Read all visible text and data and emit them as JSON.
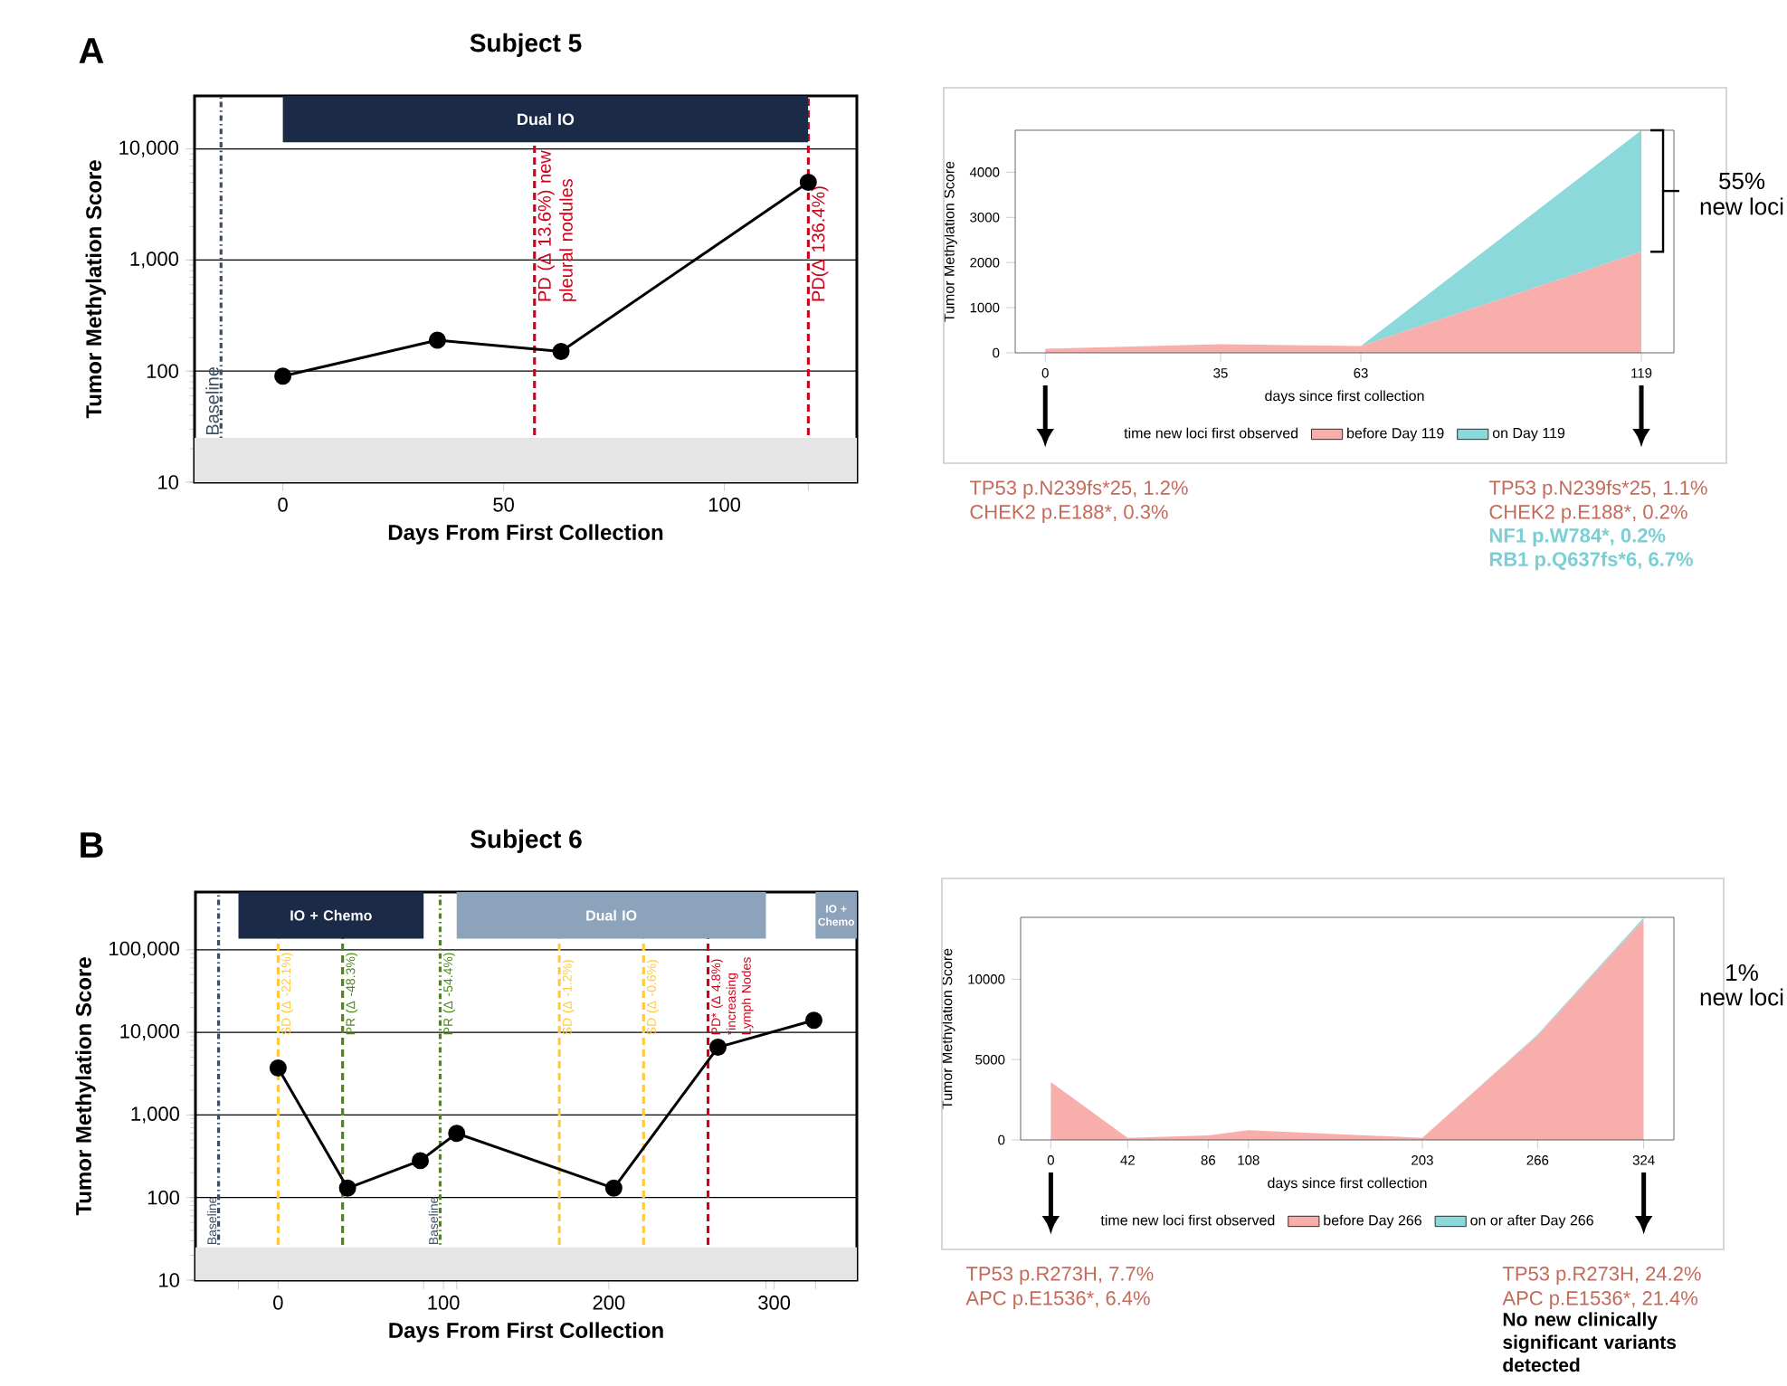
{
  "chart_data": [
    {
      "type": "line",
      "title": "Subject 5",
      "xlabel": "Days From First Collection",
      "ylabel": "Tumor Methylation Score",
      "x": [
        0,
        35,
        63,
        119
      ],
      "values": [
        90,
        190,
        150,
        5000
      ],
      "color": "#000000",
      "marker": "circle",
      "line_style": "solid",
      "log": "y",
      "grid": "y",
      "xlim": [
        -20,
        130
      ],
      "ylim": [
        10,
        30000
      ],
      "xticks": [
        0,
        50,
        100,
        {
          "value": 119,
          "label": null
        }
      ],
      "yticks": [
        10,
        100,
        {
          "value": 1000,
          "label": "1,000"
        },
        {
          "value": 10000,
          "label": "10,000"
        }
      ],
      "ref_lines": [
        {
          "axis": "x",
          "value": -14,
          "label": "Baseline",
          "color": "#3d4f63",
          "line_style": "dotted"
        },
        {
          "axis": "x",
          "value": 57,
          "label": "PD (Δ 13.6%) new pleural nodules",
          "color": "#d0021b",
          "line_style": "dashed"
        },
        {
          "axis": "x",
          "value": 119,
          "label": "PD(Δ 136.4%)",
          "color": "#d0021b",
          "line_style": "dashed"
        }
      ],
      "bands": [
        {
          "axis": "x",
          "from": 0,
          "to": 119,
          "label": "Dual IO",
          "color": "#1b2a47"
        },
        {
          "axis": "y",
          "from": 10,
          "to": 25,
          "color": "#e5e5e5"
        }
      ],
      "annotations": [
        "A"
      ]
    },
    {
      "type": "area",
      "stacked": true,
      "xlabel": "days since first collection",
      "ylabel": "Tumor Methylation Score",
      "x": [
        0,
        35,
        63,
        119
      ],
      "series": [
        {
          "name": "before Day 119",
          "color": "#f8aeab",
          "values": [
            90,
            190,
            150,
            2240
          ]
        },
        {
          "name": "on Day 119",
          "color": "#8cd9db",
          "values": [
            0,
            0,
            0,
            2690
          ]
        }
      ],
      "xlim": [
        -6,
        125.5
      ],
      "ylim": [
        0,
        4930
      ],
      "xticks": [
        0,
        35,
        63,
        119
      ],
      "yticks": [
        0,
        1000,
        2000,
        3000,
        4000
      ],
      "legend": "bottom",
      "legend_title": "time new loci first observed",
      "annotations": [
        "55%",
        "new loci",
        "TP53 p.N239fs*25, 1.2%",
        "CHEK2 p.E188*, 0.3%",
        "TP53 p.N239fs*25, 1.1%",
        "CHEK2 p.E188*, 0.2%",
        "NF1 p.W784*, 0.2%",
        "RB1 p.Q637fs*6, 6.7%"
      ]
    },
    {
      "type": "line",
      "title": "Subject 6",
      "xlabel": "Days From First Collection",
      "ylabel": "Tumor Methylation Score",
      "x": [
        0,
        42,
        86,
        108,
        203,
        266,
        324
      ],
      "values": [
        3700,
        130,
        280,
        600,
        130,
        6600,
        14000
      ],
      "color": "#000000",
      "marker": "circle",
      "line_style": "solid",
      "log": "y",
      "grid": "y",
      "xlim": [
        -50,
        350
      ],
      "ylim": [
        10,
        500000
      ],
      "xticks": [
        {
          "value": -24,
          "label": null
        },
        0,
        {
          "value": 88,
          "label": null
        },
        100,
        {
          "value": 108,
          "label": null
        },
        200,
        {
          "value": 295,
          "label": null
        },
        300,
        {
          "value": 325,
          "label": null
        }
      ],
      "yticks": [
        10,
        100,
        {
          "value": 1000,
          "label": "1,000"
        },
        {
          "value": 10000,
          "label": "10,000"
        },
        {
          "value": 100000,
          "label": "100,000"
        }
      ],
      "ref_lines": [
        {
          "axis": "x",
          "value": -36,
          "label": "Baseline",
          "color": "#3d4f63",
          "line_style": "dotted"
        },
        {
          "axis": "x",
          "value": 0,
          "label": "SD (Δ -22.1%)",
          "color": "#ffc83d",
          "line_style": "dashed"
        },
        {
          "axis": "x",
          "value": 39,
          "label": "PR (Δ -48.3%)",
          "color": "#4a8a12",
          "line_style": "dashed"
        },
        {
          "axis": "x",
          "value": 98,
          "label": "PR (Δ -54.4%)",
          "color": "#4a8a12",
          "line_style": "dotted"
        },
        {
          "axis": "x",
          "value": 170,
          "label": "SD (Δ -1.2%)",
          "color": "#ffc83d",
          "line_style": "dashed"
        },
        {
          "axis": "x",
          "value": 221,
          "label": "SD (Δ -0.6%)",
          "color": "#ffc83d",
          "line_style": "dashed"
        },
        {
          "axis": "x",
          "value": 260,
          "label": "PD* (Δ 4.8%) *increasing Lymph Nodes",
          "color": "#d0021b",
          "line_style": "dashed"
        }
      ],
      "bands": [
        {
          "axis": "x",
          "from": -24,
          "to": 88,
          "label": "IO + Chemo",
          "color": "#1b2a47"
        },
        {
          "axis": "x",
          "from": 108,
          "to": 295,
          "label": "Dual IO",
          "color": "#8da2bb"
        },
        {
          "axis": "x",
          "from": 325,
          "to": 350,
          "label": "IO + Chemo",
          "color": "#8da2bb"
        },
        {
          "axis": "y",
          "from": 10,
          "to": 25,
          "color": "#e5e5e5"
        }
      ],
      "annotations": [
        "B",
        {
          "text": "Baseline",
          "x": 98,
          "y": 25
        }
      ]
    },
    {
      "type": "area",
      "stacked": true,
      "xlabel": "days since first collection",
      "ylabel": "Tumor Methylation Score",
      "x": [
        0,
        42,
        86,
        108,
        203,
        266,
        324
      ],
      "series": [
        {
          "name": "before Day 266",
          "color": "#f8aeab",
          "values": [
            3600,
            130,
            280,
            600,
            130,
            6500,
            13700
          ]
        },
        {
          "name": "on or after Day 266",
          "color": "#8cd9db",
          "values": [
            0,
            0,
            0,
            0,
            0,
            60,
            140
          ]
        }
      ],
      "xlim": [
        -16.5,
        340.5
      ],
      "ylim": [
        0,
        13850
      ],
      "xticks": [
        0,
        42,
        86,
        108,
        203,
        266,
        324
      ],
      "yticks": [
        0,
        5000,
        10000
      ],
      "legend": "bottom",
      "legend_title": "time new loci first observed",
      "annotations": [
        "1%",
        "new loci",
        "TP53 p.R273H, 7.7%",
        "APC p.E1536*, 6.4%",
        "TP53 p.R273H, 24.2%",
        "APC p.E1536*, 21.4%",
        "No new clinically significant variants detected"
      ]
    }
  ]
}
